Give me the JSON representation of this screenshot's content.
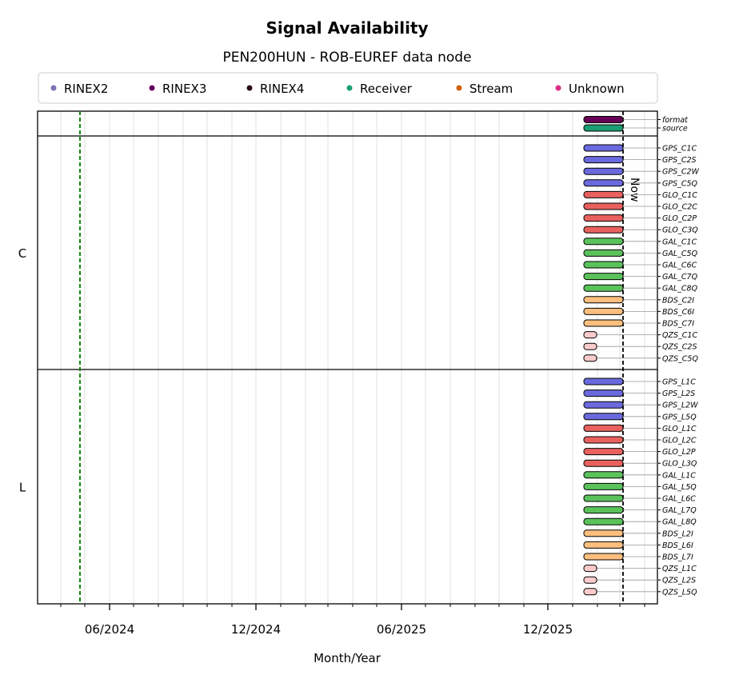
{
  "chart_data": {
    "type": "timeline",
    "title": "Signal Availability",
    "subtitle": "PEN200HUN - ROB-EUREF data node",
    "xlabel": "Month/Year",
    "x_ticks": [
      "06/2024",
      "12/2024",
      "06/2025",
      "12/2025"
    ],
    "now_label": "Now",
    "now_date": "2026-03-05",
    "marker_date": "2024-04-25",
    "legend": [
      {
        "label": "RINEX2",
        "color": "#7b72b6"
      },
      {
        "label": "RINEX3",
        "color": "#650056"
      },
      {
        "label": "RINEX4",
        "color": "#2a0a1a"
      },
      {
        "label": "Receiver",
        "color": "#1a9c74"
      },
      {
        "label": "Stream",
        "color": "#d35f0e"
      },
      {
        "label": "Unknown",
        "color": "#de2c86"
      }
    ],
    "colors": {
      "format": "#650056",
      "source": "#1a9c74",
      "GPS": "#6a6ade",
      "GLO": "#e8615e",
      "GAL": "#5bc25b",
      "BDS": "#fdbf7e",
      "QZS": "#fbcbcb",
      "marker": "#118811"
    },
    "groups": [
      {
        "label": "",
        "rows": [
          {
            "name": "format",
            "start": "2026-01-15",
            "end": "2026-03-05"
          },
          {
            "name": "source",
            "start": "2026-01-15",
            "end": "2026-03-05"
          }
        ]
      },
      {
        "label": "C",
        "rows": [
          {
            "name": "GPS_C1C",
            "start": "2026-01-15",
            "end": "2026-03-05"
          },
          {
            "name": "GPS_C2S",
            "start": "2026-01-15",
            "end": "2026-03-05"
          },
          {
            "name": "GPS_C2W",
            "start": "2026-01-15",
            "end": "2026-03-05"
          },
          {
            "name": "GPS_C5Q",
            "start": "2026-01-15",
            "end": "2026-03-05"
          },
          {
            "name": "GLO_C1C",
            "start": "2026-01-15",
            "end": "2026-03-05"
          },
          {
            "name": "GLO_C2C",
            "start": "2026-01-15",
            "end": "2026-03-05"
          },
          {
            "name": "GLO_C2P",
            "start": "2026-01-15",
            "end": "2026-03-05"
          },
          {
            "name": "GLO_C3Q",
            "start": "2026-01-15",
            "end": "2026-03-05"
          },
          {
            "name": "GAL_C1C",
            "start": "2026-01-15",
            "end": "2026-03-05"
          },
          {
            "name": "GAL_C5Q",
            "start": "2026-01-15",
            "end": "2026-03-05"
          },
          {
            "name": "GAL_C6C",
            "start": "2026-01-15",
            "end": "2026-03-05"
          },
          {
            "name": "GAL_C7Q",
            "start": "2026-01-15",
            "end": "2026-03-05"
          },
          {
            "name": "GAL_C8Q",
            "start": "2026-01-15",
            "end": "2026-03-05"
          },
          {
            "name": "BDS_C2I",
            "start": "2026-01-15",
            "end": "2026-03-05"
          },
          {
            "name": "BDS_C6I",
            "start": "2026-01-15",
            "end": "2026-03-05"
          },
          {
            "name": "BDS_C7I",
            "start": "2026-01-15",
            "end": "2026-03-05"
          },
          {
            "name": "QZS_C1C",
            "start": "2026-01-15",
            "end": "2026-01-31"
          },
          {
            "name": "QZS_C2S",
            "start": "2026-01-15",
            "end": "2026-01-31"
          },
          {
            "name": "QZS_C5Q",
            "start": "2026-01-15",
            "end": "2026-01-31"
          }
        ]
      },
      {
        "label": "L",
        "rows": [
          {
            "name": "GPS_L1C",
            "start": "2026-01-15",
            "end": "2026-03-05"
          },
          {
            "name": "GPS_L2S",
            "start": "2026-01-15",
            "end": "2026-03-05"
          },
          {
            "name": "GPS_L2W",
            "start": "2026-01-15",
            "end": "2026-03-05"
          },
          {
            "name": "GPS_L5Q",
            "start": "2026-01-15",
            "end": "2026-03-05"
          },
          {
            "name": "GLO_L1C",
            "start": "2026-01-15",
            "end": "2026-03-05"
          },
          {
            "name": "GLO_L2C",
            "start": "2026-01-15",
            "end": "2026-03-05"
          },
          {
            "name": "GLO_L2P",
            "start": "2026-01-15",
            "end": "2026-03-05"
          },
          {
            "name": "GLO_L3Q",
            "start": "2026-01-15",
            "end": "2026-03-05"
          },
          {
            "name": "GAL_L1C",
            "start": "2026-01-15",
            "end": "2026-03-05"
          },
          {
            "name": "GAL_L5Q",
            "start": "2026-01-15",
            "end": "2026-03-05"
          },
          {
            "name": "GAL_L6C",
            "start": "2026-01-15",
            "end": "2026-03-05"
          },
          {
            "name": "GAL_L7Q",
            "start": "2026-01-15",
            "end": "2026-03-05"
          },
          {
            "name": "GAL_L8Q",
            "start": "2026-01-15",
            "end": "2026-03-05"
          },
          {
            "name": "BDS_L2I",
            "start": "2026-01-15",
            "end": "2026-03-05"
          },
          {
            "name": "BDS_L6I",
            "start": "2026-01-15",
            "end": "2026-03-05"
          },
          {
            "name": "BDS_L7I",
            "start": "2026-01-15",
            "end": "2026-03-05"
          },
          {
            "name": "QZS_L1C",
            "start": "2026-01-15",
            "end": "2026-01-31"
          },
          {
            "name": "QZS_L2S",
            "start": "2026-01-15",
            "end": "2026-01-31"
          },
          {
            "name": "QZS_L5Q",
            "start": "2026-01-15",
            "end": "2026-01-31"
          }
        ]
      }
    ]
  }
}
